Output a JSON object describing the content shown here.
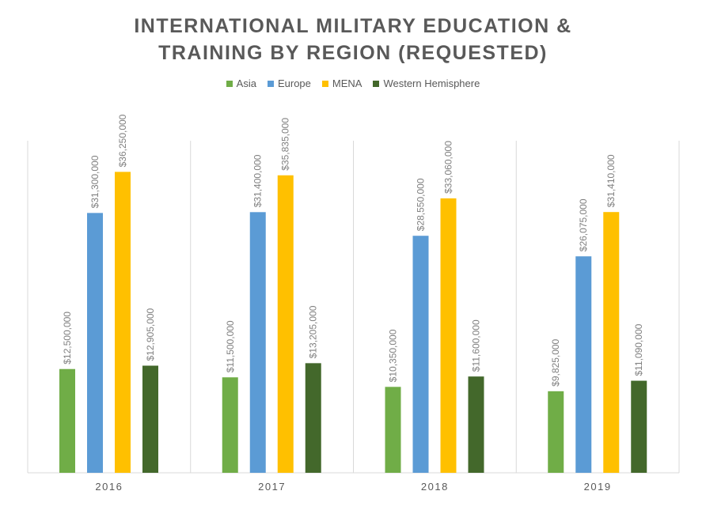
{
  "chart_data": {
    "type": "bar",
    "title_lines": [
      "INTERNATIONAL MILITARY EDUCATION &",
      "TRAINING BY REGION (REQUESTED)"
    ],
    "categories": [
      "2016",
      "2017",
      "2018",
      "2019"
    ],
    "series": [
      {
        "name": "Asia",
        "color": "#70ad47",
        "values": [
          12500000,
          11500000,
          10350000,
          9825000
        ],
        "labels": [
          "$12,500,000",
          "$11,500,000",
          "$10,350,000",
          "$9,825,000"
        ]
      },
      {
        "name": "Europe",
        "color": "#5b9bd5",
        "values": [
          31300000,
          31400000,
          28550000,
          26075000
        ],
        "labels": [
          "$31,300,000",
          "$31,400,000",
          "$28,550,000",
          "$26,075,000"
        ]
      },
      {
        "name": "MENA",
        "color": "#ffc000",
        "values": [
          36250000,
          35835000,
          33060000,
          31410000
        ],
        "labels": [
          "$36,250,000",
          "$35,835,000",
          "$33,060,000",
          "$31,410,000"
        ]
      },
      {
        "name": "Western Hemisphere",
        "color": "#43682b",
        "values": [
          12905000,
          13205000,
          11600000,
          11090000
        ],
        "labels": [
          "$12,905,000",
          "$13,205,000",
          "$11,600,000",
          "$11,090,000"
        ]
      }
    ],
    "ylim": [
      0,
      40000000
    ],
    "legend": "top",
    "grid": "vertical category separators"
  }
}
